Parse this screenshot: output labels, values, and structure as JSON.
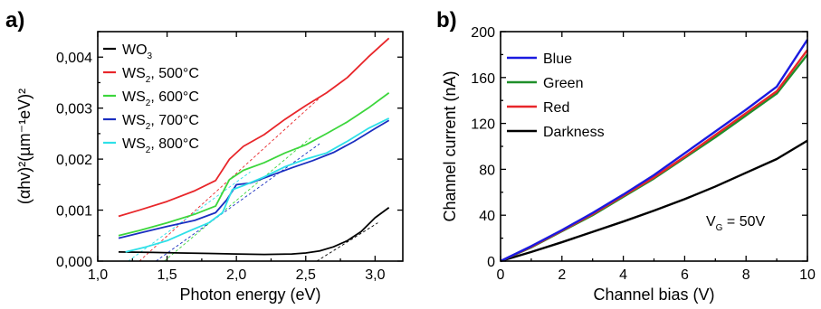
{
  "panels": {
    "a": {
      "label": "a)"
    },
    "b": {
      "label": "b)"
    }
  },
  "chart_data": [
    {
      "type": "line",
      "xlabel": "Photon energy (eV)",
      "ylabel": "(αhv)²(µm⁻¹eV)²",
      "xlim": [
        1.0,
        3.2
      ],
      "ylim": [
        0.0,
        0.0045
      ],
      "xticks": [
        "1,0",
        "1,5",
        "2,0",
        "2,5",
        "3,0"
      ],
      "yticks": [
        "0,000",
        "0,001",
        "0,002",
        "0,003",
        "0,004"
      ],
      "legend_position": "top-left",
      "series": [
        {
          "name": "WO3",
          "legend_main": "WO",
          "legend_sub": "3",
          "legend_suffix": "",
          "color": "#000000",
          "x": [
            1.15,
            1.4,
            1.6,
            1.8,
            2.0,
            2.2,
            2.4,
            2.5,
            2.6,
            2.7,
            2.8,
            2.9,
            3.0,
            3.1
          ],
          "y": [
            0.00018,
            0.00017,
            0.00016,
            0.00015,
            0.00014,
            0.00013,
            0.00014,
            0.00016,
            0.0002,
            0.00028,
            0.0004,
            0.00058,
            0.00085,
            0.00105
          ]
        },
        {
          "name": "WS2, 500°C",
          "legend_main": "WS",
          "legend_sub": "2",
          "legend_suffix": ", 500°C",
          "color": "#e8262a",
          "x": [
            1.15,
            1.3,
            1.5,
            1.7,
            1.85,
            1.95,
            2.05,
            2.2,
            2.35,
            2.5,
            2.65,
            2.8,
            2.95,
            3.1
          ],
          "y": [
            0.00088,
            0.001,
            0.00117,
            0.00138,
            0.00158,
            0.002,
            0.00225,
            0.00248,
            0.00278,
            0.00305,
            0.0033,
            0.0036,
            0.004,
            0.00437
          ]
        },
        {
          "name": "WS2, 600°C",
          "legend_main": "WS",
          "legend_sub": "2",
          "legend_suffix": ", 600°C",
          "color": "#3cd63c",
          "x": [
            1.15,
            1.3,
            1.5,
            1.7,
            1.85,
            1.95,
            2.05,
            2.2,
            2.35,
            2.5,
            2.65,
            2.8,
            2.95,
            3.1
          ],
          "y": [
            0.0005,
            0.0006,
            0.00075,
            0.00092,
            0.00108,
            0.0016,
            0.00178,
            0.00193,
            0.00212,
            0.00228,
            0.0025,
            0.00273,
            0.003,
            0.0033
          ]
        },
        {
          "name": "WS2, 700°C",
          "legend_main": "WS",
          "legend_sub": "2",
          "legend_suffix": ", 700°C",
          "color": "#1a2ec0",
          "x": [
            1.15,
            1.3,
            1.5,
            1.7,
            1.85,
            1.93,
            2.0,
            2.1,
            2.25,
            2.4,
            2.55,
            2.7,
            2.85,
            3.0,
            3.1
          ],
          "y": [
            0.00045,
            0.00055,
            0.00068,
            0.0008,
            0.00095,
            0.0012,
            0.0015,
            0.00153,
            0.00168,
            0.00183,
            0.00197,
            0.00213,
            0.00235,
            0.0026,
            0.00276
          ]
        },
        {
          "name": "WS2, 800°C",
          "legend_main": "WS",
          "legend_sub": "2",
          "legend_suffix": ", 800°C",
          "color": "#2ee0e8",
          "x": [
            1.2,
            1.35,
            1.5,
            1.65,
            1.8,
            1.9,
            1.97,
            2.05,
            2.2,
            2.35,
            2.5,
            2.65,
            2.8,
            2.95,
            3.1
          ],
          "y": [
            0.00018,
            0.00028,
            0.0004,
            0.00058,
            0.00075,
            0.00095,
            0.0014,
            0.00148,
            0.00165,
            0.00185,
            0.002,
            0.00212,
            0.00235,
            0.0026,
            0.0028
          ]
        }
      ],
      "guides": [
        {
          "color": "#000000",
          "x": [
            2.58,
            3.02
          ],
          "y": [
            0.0,
            0.00075
          ]
        },
        {
          "color": "#e8262a",
          "x": [
            1.3,
            2.6
          ],
          "y": [
            0.0,
            0.0032
          ]
        },
        {
          "color": "#3cd63c",
          "x": [
            1.48,
            2.55
          ],
          "y": [
            0.0,
            0.00245
          ]
        },
        {
          "color": "#1a2ec0",
          "x": [
            1.42,
            2.6
          ],
          "y": [
            0.0,
            0.0023
          ]
        },
        {
          "color": "#2ee0e8",
          "x": [
            1.22,
            2.1
          ],
          "y": [
            0.0,
            0.00175
          ]
        }
      ]
    },
    {
      "type": "line",
      "xlabel": "Channel bias (V)",
      "ylabel": "Channel current (nA)",
      "xlim": [
        0,
        10
      ],
      "ylim": [
        0,
        200
      ],
      "xticks": [
        "0",
        "2",
        "4",
        "6",
        "8",
        "10"
      ],
      "yticks": [
        "0",
        "40",
        "80",
        "120",
        "160",
        "200"
      ],
      "legend_position": "top-left",
      "annotation": {
        "main": "V",
        "sub": "G",
        "suffix": " = 50V"
      },
      "series": [
        {
          "name": "Blue",
          "color": "#1a1ae0",
          "x": [
            0,
            1,
            2,
            3,
            4,
            5,
            6,
            7,
            8,
            9,
            10
          ],
          "y": [
            0,
            13,
            27,
            42,
            58,
            75,
            94,
            113,
            132,
            152,
            193
          ]
        },
        {
          "name": "Green",
          "color": "#1f8f2a",
          "x": [
            0,
            1,
            2,
            3,
            4,
            5,
            6,
            7,
            8,
            9,
            10
          ],
          "y": [
            0,
            12,
            26,
            40,
            56,
            72,
            90,
            108,
            127,
            146,
            180
          ]
        },
        {
          "name": "Red",
          "color": "#e8262a",
          "x": [
            0,
            1,
            2,
            3,
            4,
            5,
            6,
            7,
            8,
            9,
            10
          ],
          "y": [
            0,
            12.5,
            26.5,
            41,
            57,
            73,
            91,
            110,
            129,
            148,
            184
          ]
        },
        {
          "name": "Darkness",
          "color": "#000000",
          "x": [
            0,
            1,
            2,
            3,
            4,
            5,
            6,
            7,
            8,
            9,
            10
          ],
          "y": [
            0,
            8,
            16.5,
            25.5,
            34.5,
            44,
            54,
            65,
            77,
            89,
            105
          ]
        }
      ]
    }
  ]
}
